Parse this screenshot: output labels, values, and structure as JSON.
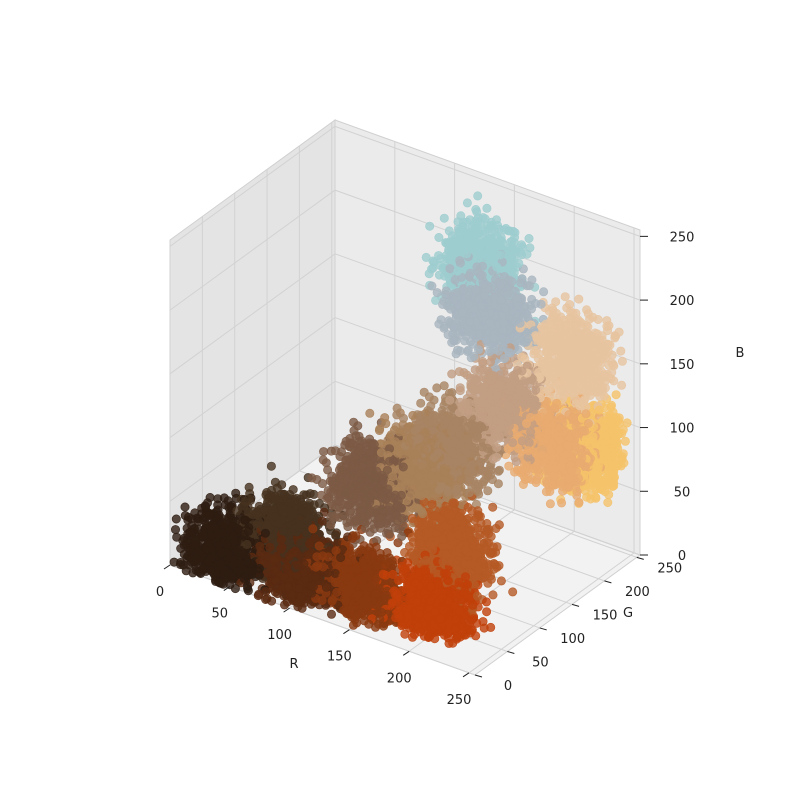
{
  "chart_data": {
    "type": "scatter",
    "subtype": "3d",
    "title": "",
    "xlabel": "R",
    "ylabel": "G",
    "zlabel": "B",
    "xlim": [
      0,
      255
    ],
    "ylim": [
      0,
      255
    ],
    "zlim": [
      0,
      255
    ],
    "xticks": [
      "0",
      "50",
      "100",
      "150",
      "200",
      "250"
    ],
    "yticks": [
      "0",
      "50",
      "100",
      "150",
      "200",
      "250"
    ],
    "zticks": [
      "0",
      "50",
      "100",
      "150",
      "200",
      "250"
    ],
    "grid": true,
    "legend": "none",
    "clusters": [
      {
        "color": "#2e1d12",
        "center": [
          35,
          22,
          15
        ]
      },
      {
        "color": "#46321f",
        "center": [
          70,
          50,
          30
        ]
      },
      {
        "color": "#5a2a12",
        "center": [
          95,
          35,
          12
        ]
      },
      {
        "color": "#8a3a10",
        "center": [
          135,
          45,
          12
        ]
      },
      {
        "color": "#c0400a",
        "center": [
          190,
          55,
          10
        ]
      },
      {
        "color": "#b55a25",
        "center": [
          185,
          95,
          40
        ]
      },
      {
        "color": "#7c5a45",
        "center": [
          120,
          90,
          70
        ]
      },
      {
        "color": "#a88464",
        "center": [
          165,
          130,
          100
        ]
      },
      {
        "color": "#a98159",
        "center": [
          150,
          110,
          85
        ]
      },
      {
        "color": "#e9ab70",
        "center": [
          230,
          170,
          110
        ]
      },
      {
        "color": "#f5c36a",
        "center": [
          245,
          200,
          100
        ]
      },
      {
        "color": "#c29e83",
        "center": [
          195,
          160,
          130
        ]
      },
      {
        "color": "#e7c4a0",
        "center": [
          230,
          200,
          165
        ]
      },
      {
        "color": "#a9b5bf",
        "center": [
          170,
          180,
          190
        ]
      },
      {
        "color": "#9ecdcf",
        "center": [
          150,
          205,
          210
        ]
      }
    ]
  }
}
